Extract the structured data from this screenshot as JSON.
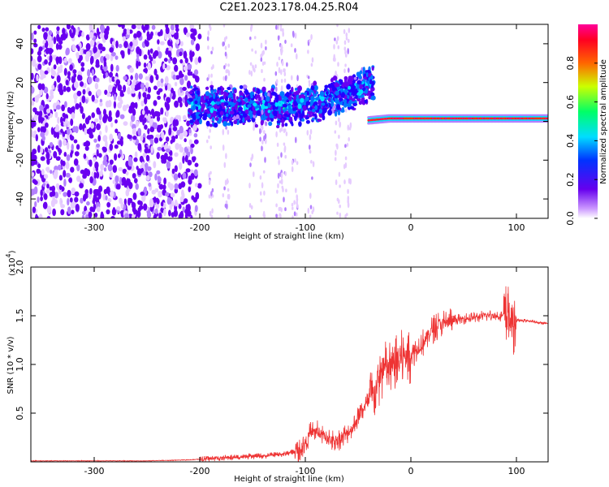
{
  "title": "C2E1.2023.178.04.25.R04",
  "chart_data": [
    {
      "type": "heatmap",
      "panel": "spectrogram",
      "xlabel": "Height of straight line (km)",
      "ylabel": "Frequency (Hz)",
      "xlim": [
        -360,
        130
      ],
      "ylim": [
        -50,
        50
      ],
      "x_ticks": [
        -300,
        -200,
        -100,
        0,
        100
      ],
      "y_ticks": [
        -40,
        -20,
        0,
        20,
        40
      ],
      "x_tick_labels": [
        "-300",
        "-200",
        "-100",
        "0",
        "100"
      ],
      "y_tick_labels": [
        "-40",
        "-20",
        "0",
        "20",
        "40"
      ],
      "grid": false,
      "colorbar": {
        "label": "Normalized spectral amplitude",
        "range": [
          0.0,
          1.0
        ],
        "ticks": [
          0.0,
          0.2,
          0.4,
          0.6,
          0.8
        ],
        "tick_labels": [
          "0.0",
          "0.2",
          "0.4",
          "0.6",
          "0.8"
        ],
        "colormap": "rainbow (white-purple-blue-cyan-green-yellow-red-magenta)"
      },
      "features": [
        {
          "x_range": [
            -360,
            -200
          ],
          "freq_range": [
            -50,
            50
          ],
          "amplitude": "0.05-0.2",
          "description": "scattered noise"
        },
        {
          "x_range": [
            -210,
            -100
          ],
          "freq_center": 8,
          "freq_halfwidth": 10,
          "amplitude": "0.2-0.45"
        },
        {
          "x_range": [
            -100,
            -35
          ],
          "freq_center": "3 to -5",
          "freq_halfwidth": 8,
          "amplitude": "0.2-0.45"
        },
        {
          "x_range": [
            -20,
            130
          ],
          "freq_center": 1.5,
          "freq_halfwidth": 2,
          "amplitude": "0.8-1.0"
        }
      ]
    },
    {
      "type": "line",
      "panel": "snr",
      "xlabel": "Height of straight line (km)",
      "ylabel": "SNR (10 * v/v)",
      "y_multiplier_label": "(x10",
      "y_multiplier_exponent": "4",
      "y_multiplier_close": ")",
      "xlim": [
        -360,
        130
      ],
      "ylim": [
        0,
        2.0
      ],
      "x_ticks": [
        -300,
        -200,
        -100,
        0,
        100
      ],
      "y_ticks": [
        0.5,
        1.0,
        1.5,
        2.0
      ],
      "x_tick_labels": [
        "-300",
        "-200",
        "-100",
        "0",
        "100"
      ],
      "y_tick_labels": [
        "0.5",
        "1.0",
        "1.5",
        "2.0"
      ],
      "grid": false,
      "series": [
        {
          "color": "#ee3333",
          "x": [
            -360,
            -300,
            -250,
            -210,
            -195,
            -180,
            -160,
            -140,
            -120,
            -105,
            -100,
            -95,
            -90,
            -85,
            -80,
            -75,
            -70,
            -65,
            -60,
            -55,
            -50,
            -45,
            -40,
            -35,
            -30,
            -25,
            -20,
            -15,
            -10,
            -5,
            0,
            5,
            10,
            15,
            20,
            25,
            30,
            40,
            50,
            60,
            70,
            80,
            90,
            95,
            100,
            110,
            120,
            130
          ],
          "y": [
            0.01,
            0.01,
            0.01,
            0.02,
            0.03,
            0.04,
            0.05,
            0.06,
            0.08,
            0.12,
            0.2,
            0.3,
            0.32,
            0.28,
            0.25,
            0.22,
            0.22,
            0.25,
            0.3,
            0.35,
            0.45,
            0.55,
            0.62,
            0.7,
            0.85,
            0.95,
            0.95,
            1.0,
            1.05,
            1.1,
            1.1,
            1.15,
            1.2,
            1.28,
            1.35,
            1.4,
            1.42,
            1.45,
            1.47,
            1.48,
            1.5,
            1.5,
            1.5,
            1.45,
            1.45,
            1.45,
            1.43,
            1.42
          ]
        }
      ]
    }
  ]
}
